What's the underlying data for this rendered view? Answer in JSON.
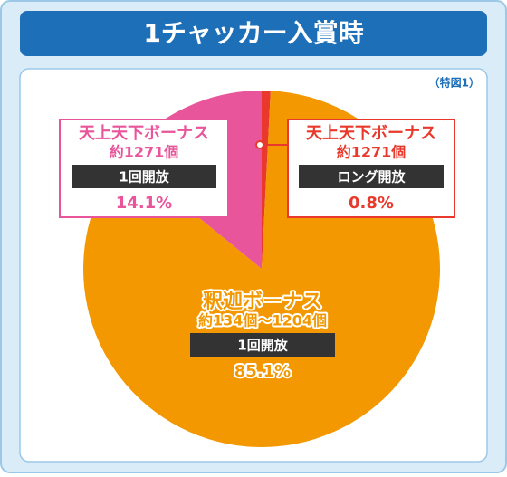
{
  "chart_data": {
    "type": "pie",
    "title": "1チャッカー入賞時",
    "note": "（特図1）",
    "slices": [
      {
        "name": "天上天下ボーナス",
        "count": "約1271個",
        "mode": "ロング開放",
        "value": 0.8,
        "value_label": "0.8%",
        "color": "#e8392c"
      },
      {
        "name": "釈迦ボーナス",
        "count": "約134個～1204個",
        "mode": "1回開放",
        "value": 85.1,
        "value_label": "85.1%",
        "color": "#f39800"
      },
      {
        "name": "天上天下ボーナス",
        "count": "約1271個",
        "mode": "1回開放",
        "value": 14.1,
        "value_label": "14.1%",
        "color": "#e8559a"
      }
    ]
  }
}
